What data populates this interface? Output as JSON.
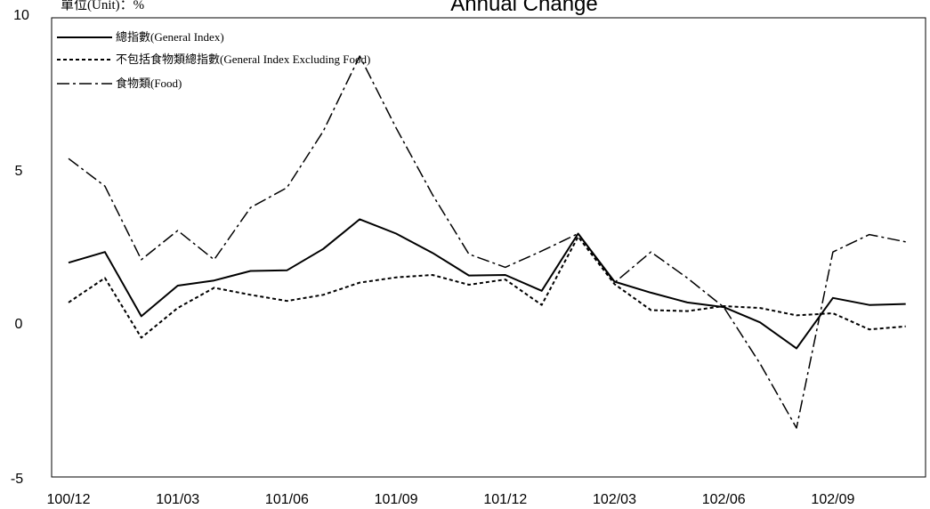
{
  "chart_data": {
    "type": "line",
    "title": "Annual Change",
    "unit_label": "單位(Unit)：%",
    "ylim": [
      -5,
      10
    ],
    "yticks": [
      "-5",
      "0",
      "5",
      "10"
    ],
    "categories": [
      "100/12",
      "101/01",
      "101/02",
      "101/03",
      "101/04",
      "101/05",
      "101/06",
      "101/07",
      "101/08",
      "101/09",
      "101/10",
      "101/11",
      "101/12",
      "102/01",
      "102/02",
      "102/03",
      "102/04",
      "102/05",
      "102/06",
      "102/07",
      "102/08",
      "102/09",
      "102/10",
      "102/11"
    ],
    "xtick_labels": [
      "100/12",
      "101/03",
      "101/06",
      "101/09",
      "101/12",
      "102/03",
      "102/06",
      "102/09"
    ],
    "xtick_indices": [
      0,
      3,
      6,
      9,
      12,
      15,
      18,
      21
    ],
    "grid": false,
    "legend_position": "top-left",
    "series": [
      {
        "name": "總指數(General Index)",
        "style": "solid",
        "values": [
          2.0,
          2.35,
          0.25,
          1.25,
          1.42,
          1.73,
          1.75,
          2.45,
          3.42,
          2.95,
          2.32,
          1.58,
          1.6,
          1.08,
          2.95,
          1.38,
          1.02,
          0.7,
          0.55,
          0.05,
          -0.8,
          0.85,
          0.62,
          0.65
        ]
      },
      {
        "name": "不包括食物類總指數(General Index Excluding Food)",
        "style": "dashed",
        "values": [
          0.7,
          1.5,
          -0.45,
          0.52,
          1.18,
          0.95,
          0.75,
          0.95,
          1.35,
          1.52,
          1.6,
          1.28,
          1.45,
          0.62,
          2.85,
          1.3,
          0.45,
          0.42,
          0.58,
          0.52,
          0.28,
          0.35,
          -0.18,
          -0.08
        ]
      },
      {
        "name": "食物類(Food)",
        "style": "dashdot",
        "values": [
          5.4,
          4.5,
          2.1,
          3.05,
          2.1,
          3.8,
          4.45,
          6.3,
          8.75,
          6.4,
          4.22,
          2.28,
          1.85,
          2.38,
          2.95,
          1.35,
          2.35,
          1.5,
          0.55,
          -1.3,
          -3.4,
          2.35,
          2.92,
          2.68
        ]
      }
    ]
  }
}
